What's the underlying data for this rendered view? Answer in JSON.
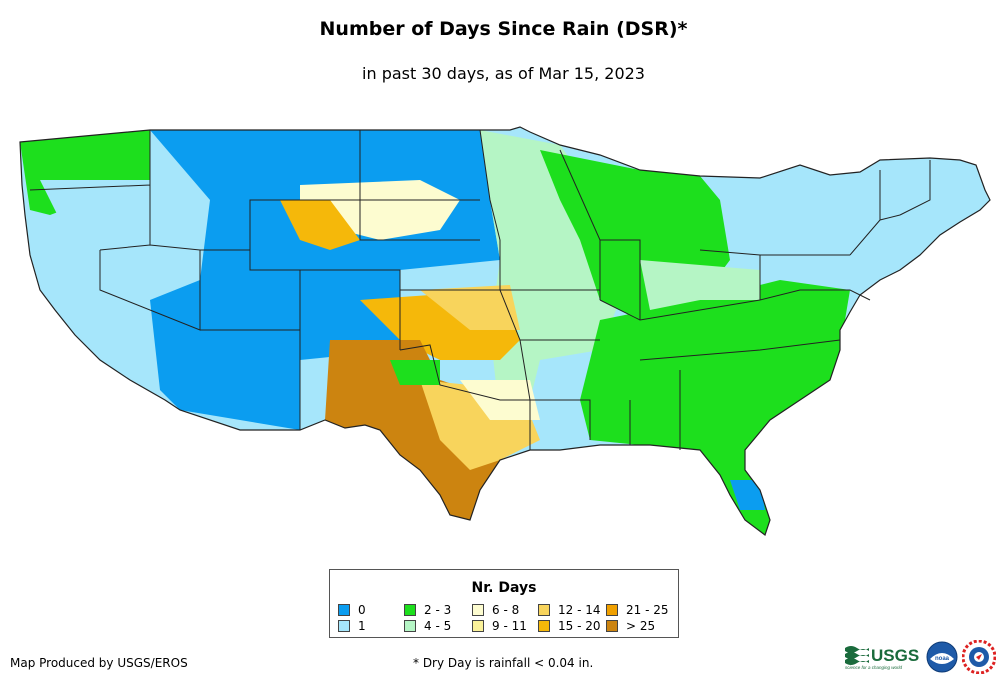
{
  "title": "Number of Days Since Rain (DSR)*",
  "subtitle": "in past 30 days, as of Mar 15, 2023",
  "legend": {
    "title": "Nr. Days",
    "items": [
      {
        "label": "0",
        "color": "#0b9df0"
      },
      {
        "label": "1",
        "color": "#a6e6fb"
      },
      {
        "label": "2 - 3",
        "color": "#1ddf1d"
      },
      {
        "label": "4 - 5",
        "color": "#b5f5c5"
      },
      {
        "label": "6 - 8",
        "color": "#fdfcd0"
      },
      {
        "label": "9 - 11",
        "color": "#fbf29a"
      },
      {
        "label": "12 - 14",
        "color": "#f8d45c"
      },
      {
        "label": "15 - 20",
        "color": "#f5b80a"
      },
      {
        "label": "21 - 25",
        "color": "#f0a000"
      },
      {
        "label": "> 25",
        "color": "#cc8410"
      }
    ]
  },
  "footer": {
    "credit": "Map Produced by USGS/EROS",
    "note": "* Dry Day is rainfall < 0.04 in."
  },
  "logos": {
    "usgs_text": "USGS",
    "usgs_tagline": "science for a changing world",
    "noaa_text": "noaa"
  }
}
